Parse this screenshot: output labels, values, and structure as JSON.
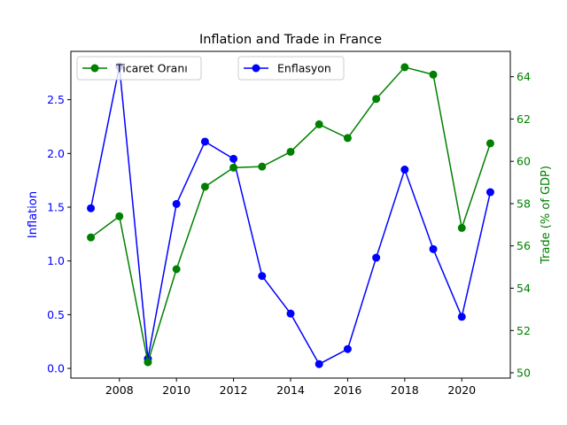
{
  "chart_data": {
    "type": "line",
    "title": "Inflation and Trade in France",
    "x": [
      2007,
      2008,
      2009,
      2010,
      2011,
      2012,
      2013,
      2014,
      2015,
      2016,
      2017,
      2018,
      2019,
      2020,
      2021
    ],
    "x_ticks": [
      2008,
      2010,
      2012,
      2014,
      2016,
      2018,
      2020
    ],
    "xlim": [
      2006.3,
      2021.7
    ],
    "left_axis": {
      "label": "Inflation",
      "color": "#0000ff",
      "ylim": [
        -0.09,
        2.95
      ],
      "ticks": [
        0.0,
        0.5,
        1.0,
        1.5,
        2.0,
        2.5
      ],
      "tick_labels": [
        "0.0",
        "0.5",
        "1.0",
        "1.5",
        "2.0",
        "2.5"
      ]
    },
    "right_axis": {
      "label": "Trade (% of GDP)",
      "color": "#008000",
      "ylim": [
        49.75,
        65.2
      ],
      "ticks": [
        50,
        52,
        54,
        56,
        58,
        60,
        62,
        64
      ],
      "tick_labels": [
        "50",
        "52",
        "54",
        "56",
        "58",
        "60",
        "62",
        "64"
      ]
    },
    "series": [
      {
        "name": "Enflasyon",
        "axis": "left",
        "color": "#0000ff",
        "values": [
          1.49,
          2.81,
          0.09,
          1.53,
          2.11,
          1.95,
          0.86,
          0.51,
          0.04,
          0.18,
          1.03,
          1.85,
          1.11,
          0.48,
          1.64
        ]
      },
      {
        "name": "Ticaret Oranı",
        "axis": "right",
        "color": "#008000",
        "values": [
          56.4,
          57.4,
          50.5,
          54.9,
          58.8,
          59.7,
          59.75,
          60.45,
          61.75,
          61.1,
          62.95,
          64.45,
          64.1,
          56.85,
          60.85
        ]
      }
    ],
    "legend": [
      {
        "name": "Ticaret Oranı",
        "color": "#008000",
        "placement": "upper-left"
      },
      {
        "name": "Enflasyon",
        "color": "#0000ff",
        "placement": "upper-center"
      }
    ],
    "grid": false
  }
}
